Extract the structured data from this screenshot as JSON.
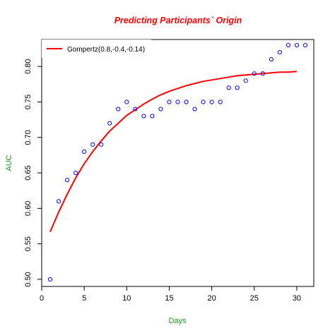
{
  "chart_data": {
    "type": "scatter",
    "title": "Predicting Participants` Origin",
    "xlabel": "Days",
    "ylabel": "AUC",
    "xlim": [
      0,
      32
    ],
    "ylim": [
      0.49,
      0.838
    ],
    "xticks": [
      0,
      5,
      10,
      15,
      20,
      25,
      30
    ],
    "yticks": [
      0.5,
      0.55,
      0.6,
      0.65,
      0.7,
      0.75,
      0.8
    ],
    "xtick_labels": [
      "0",
      "5",
      "10",
      "15",
      "20",
      "25",
      "30"
    ],
    "ytick_labels": [
      "0.50",
      "0.55",
      "0.60",
      "0.65",
      "0.70",
      "0.75",
      "0.80"
    ],
    "grid": false,
    "legend_position": "top-left",
    "series": [
      {
        "kind": "points",
        "color": "#0000ff",
        "marker": "open-circle",
        "x": [
          1,
          2,
          3,
          4,
          5,
          6,
          7,
          8,
          9,
          10,
          11,
          12,
          13,
          14,
          15,
          16,
          17,
          18,
          19,
          20,
          21,
          22,
          23,
          24,
          25,
          26,
          27,
          28,
          29,
          30,
          31
        ],
        "y": [
          0.5,
          0.61,
          0.64,
          0.65,
          0.68,
          0.69,
          0.69,
          0.72,
          0.74,
          0.75,
          0.74,
          0.73,
          0.73,
          0.74,
          0.75,
          0.75,
          0.75,
          0.74,
          0.75,
          0.75,
          0.75,
          0.77,
          0.77,
          0.78,
          0.79,
          0.79,
          0.81,
          0.82,
          0.83,
          0.83,
          0.83
        ]
      },
      {
        "kind": "fitted-line",
        "name": "Gompertz(0.8,-0.4,-0.14)",
        "color": "#ff0000",
        "x": [
          1,
          2,
          3,
          4,
          5,
          6,
          7,
          8,
          9,
          10,
          11,
          12,
          13,
          14,
          15,
          16,
          17,
          18,
          19,
          20,
          21,
          22,
          23,
          24,
          25,
          26,
          27,
          28,
          29,
          30
        ],
        "y": [
          0.567,
          0.595,
          0.62,
          0.643,
          0.663,
          0.68,
          0.695,
          0.709,
          0.72,
          0.731,
          0.739,
          0.747,
          0.754,
          0.76,
          0.765,
          0.769,
          0.773,
          0.776,
          0.779,
          0.781,
          0.783,
          0.785,
          0.787,
          0.788,
          0.789,
          0.79,
          0.791,
          0.792,
          0.792,
          0.793
        ]
      }
    ]
  }
}
